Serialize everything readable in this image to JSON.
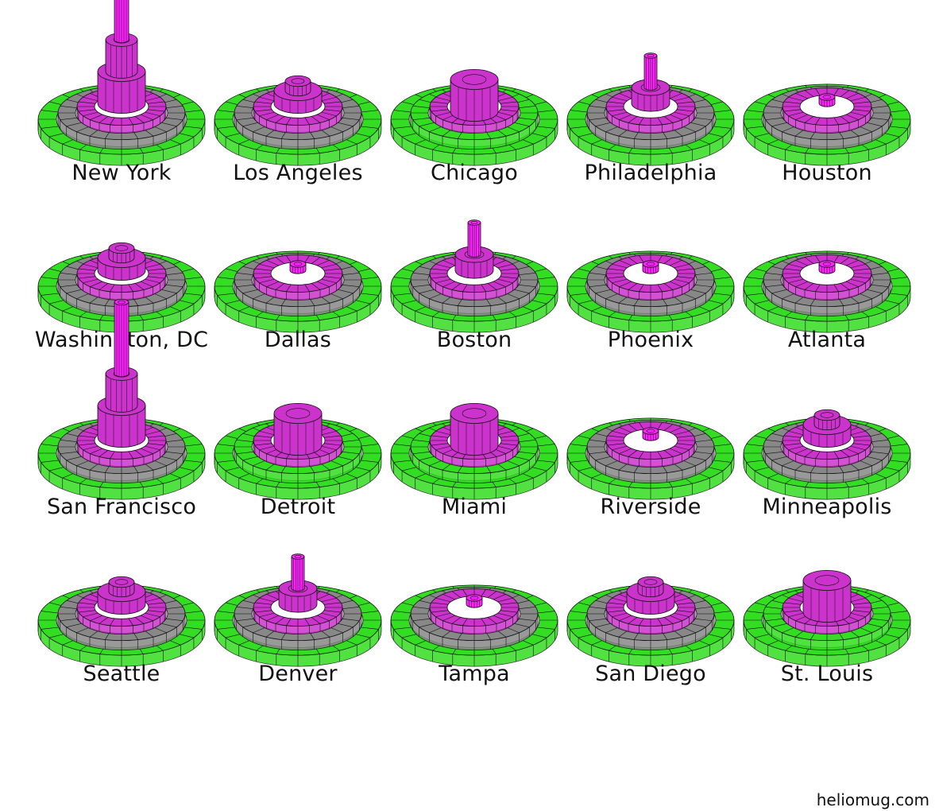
{
  "colors": {
    "outer": "#33dd22",
    "middle": "#888888",
    "inner": "#cc33cc",
    "core": "#ff22ff",
    "edge": "#111111"
  },
  "cities": [
    {
      "name": "New York",
      "style": "tower"
    },
    {
      "name": "Los Angeles",
      "style": "dome"
    },
    {
      "name": "Chicago",
      "style": "arch"
    },
    {
      "name": "Philadelphia",
      "style": "spire"
    },
    {
      "name": "Houston",
      "style": "flat"
    },
    {
      "name": "Washington, DC",
      "style": "dome"
    },
    {
      "name": "Dallas",
      "style": "flat"
    },
    {
      "name": "Boston",
      "style": "spire"
    },
    {
      "name": "Phoenix",
      "style": "flat"
    },
    {
      "name": "Atlanta",
      "style": "flat"
    },
    {
      "name": "San Francisco",
      "style": "tower"
    },
    {
      "name": "Detroit",
      "style": "arch"
    },
    {
      "name": "Miami",
      "style": "arch"
    },
    {
      "name": "Riverside",
      "style": "flat"
    },
    {
      "name": "Minneapolis",
      "style": "dome"
    },
    {
      "name": "Seattle",
      "style": "dome"
    },
    {
      "name": "Denver",
      "style": "spire"
    },
    {
      "name": "Tampa",
      "style": "flat"
    },
    {
      "name": "San Diego",
      "style": "dome"
    },
    {
      "name": "St. Louis",
      "style": "arch"
    }
  ],
  "credit": "heliomug.com"
}
